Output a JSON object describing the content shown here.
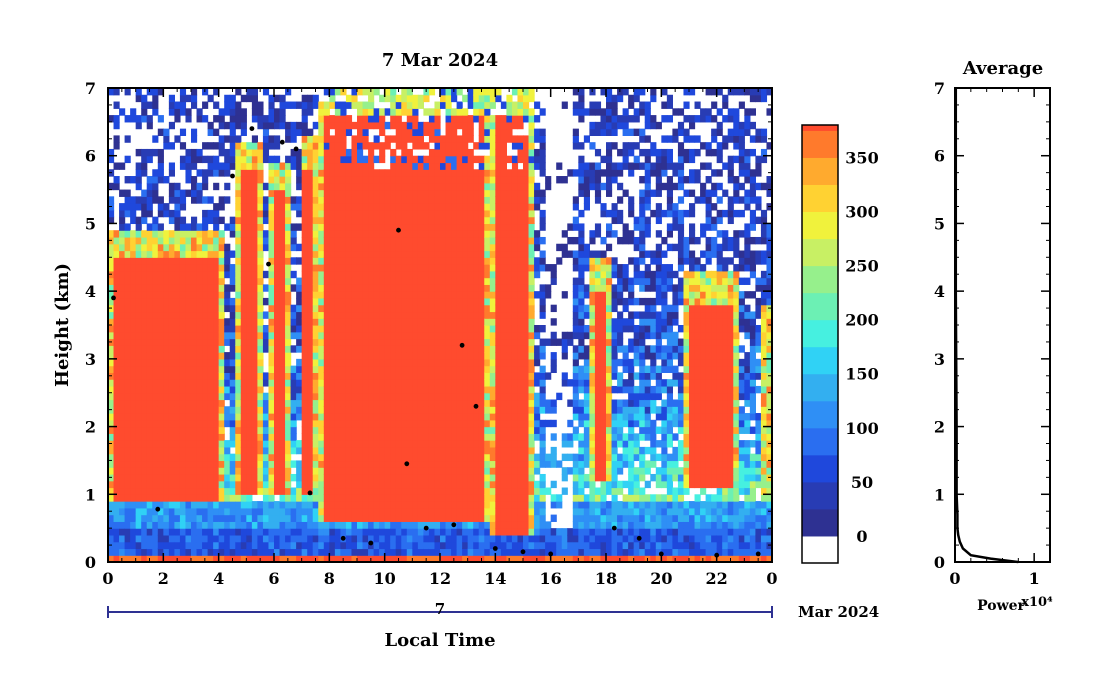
{
  "chart_data": [
    {
      "type": "heatmap",
      "title": "7 Mar 2024",
      "xlabel": "Local Time",
      "ylabel": "Height (km)",
      "xlim": [
        0,
        24
      ],
      "ylim": [
        0,
        7
      ],
      "x_ticks": [
        "0",
        "2",
        "4",
        "6",
        "8",
        "10",
        "12",
        "14",
        "16",
        "18",
        "20",
        "22",
        "0"
      ],
      "y_ticks": [
        "0",
        "1",
        "2",
        "3",
        "4",
        "5",
        "6",
        "7"
      ],
      "date_axis": {
        "day_label": "7",
        "month_year": "Mar 2024"
      },
      "colorbar": {
        "ticks": [
          "0",
          "50",
          "100",
          "150",
          "200",
          "250",
          "300",
          "350"
        ],
        "range": [
          -25,
          380
        ],
        "colors": [
          "#ffffff",
          "#2e3192",
          "#283cb4",
          "#1f48dc",
          "#2a6ef0",
          "#2f8ff5",
          "#33aff0",
          "#30d2f5",
          "#46f0e0",
          "#6cf0b4",
          "#96f08c",
          "#c8f064",
          "#f0f23c",
          "#ffd232",
          "#ffaa2e",
          "#ff7a2c",
          "#ff4b2e",
          "#f03c3c"
        ]
      },
      "cloud_layers": [
        {
          "x": [
            0.1,
            4.1
          ],
          "base": 0.9,
          "top": 4.9
        },
        {
          "x": [
            4.6,
            5.6
          ],
          "base": 1.0,
          "top": 6.2
        },
        {
          "x": [
            5.8,
            6.6
          ],
          "base": 1.0,
          "top": 5.9
        },
        {
          "x": [
            6.9,
            7.6
          ],
          "base": 1.0,
          "top": 6.3
        },
        {
          "x": [
            7.6,
            13.8
          ],
          "base": 0.6,
          "top": 7.0
        },
        {
          "x": [
            13.8,
            15.4
          ],
          "base": 0.4,
          "top": 7.0
        },
        {
          "x": [
            17.5,
            18.1
          ],
          "base": 1.2,
          "top": 4.5
        },
        {
          "x": [
            20.9,
            22.7
          ],
          "base": 1.1,
          "top": 4.3
        },
        {
          "x": [
            23.7,
            23.9
          ],
          "base": 0.9,
          "top": 3.8
        }
      ],
      "black_markers_km": [
        [
          0.2,
          3.9
        ],
        [
          1.8,
          0.78
        ],
        [
          4.5,
          5.7
        ],
        [
          5.2,
          6.4
        ],
        [
          5.8,
          4.4
        ],
        [
          6.3,
          6.2
        ],
        [
          6.8,
          6.1
        ],
        [
          7.3,
          1.02
        ],
        [
          8.5,
          0.35
        ],
        [
          9.5,
          0.28
        ],
        [
          10.5,
          4.9
        ],
        [
          10.8,
          1.45
        ],
        [
          11.5,
          0.5
        ],
        [
          12.5,
          0.55
        ],
        [
          12.8,
          3.2
        ],
        [
          13.3,
          2.3
        ],
        [
          14.0,
          0.2
        ],
        [
          15.0,
          0.15
        ],
        [
          16.0,
          0.12
        ],
        [
          18.3,
          0.5
        ],
        [
          19.2,
          0.35
        ],
        [
          20.0,
          0.12
        ],
        [
          22.0,
          0.1
        ],
        [
          23.5,
          0.12
        ]
      ]
    },
    {
      "type": "line",
      "title": "Average",
      "xlabel": "Power",
      "x_exponent": "x10⁴",
      "xlim": [
        0,
        1.2
      ],
      "ylim": [
        0,
        7
      ],
      "x_ticks": [
        "0",
        "1"
      ],
      "y_ticks": [
        "0",
        "1",
        "2",
        "3",
        "4",
        "5",
        "6",
        "7"
      ],
      "series": [
        {
          "x": [
            0.8,
            0.45,
            0.2,
            0.1,
            0.06,
            0.04,
            0.03,
            0.03,
            0.02,
            0.02,
            0.01,
            0.01
          ],
          "y": [
            0.0,
            0.05,
            0.1,
            0.2,
            0.3,
            0.4,
            0.5,
            0.7,
            1.0,
            2.0,
            4.0,
            7.0
          ]
        }
      ]
    }
  ]
}
